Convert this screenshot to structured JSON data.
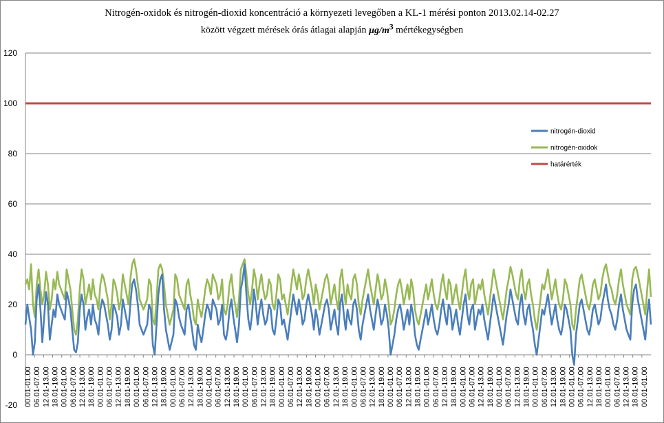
{
  "title_line1": "Nitrogén-oxidok és nitrogén-dioxid koncentráció a környezeti levegőben  a KL-1 mérési ponton 2013.02.14-02.27",
  "title_line2_a": "között végzett mérések órás átlagai alapján ",
  "title_line2_unit": "µg/m",
  "title_line2_sup": "3",
  "title_line2_b": " mértékegységben",
  "chart_data": {
    "type": "line",
    "ylim": [
      -20,
      120
    ],
    "yticks": [
      -20,
      0,
      20,
      40,
      60,
      80,
      100,
      120
    ],
    "grid": true,
    "legend_position": "right",
    "xticks_pattern": [
      "00.01-01.00",
      "06.01-07.00",
      "12.01-13.00",
      "18.01-19.00"
    ],
    "xtick_count": 69,
    "points_per_tick": 6,
    "series": [
      {
        "name": "nitrogén-dioxid",
        "color": "#4a7ebb",
        "values": [
          12,
          20,
          15,
          10,
          0,
          5,
          22,
          28,
          18,
          5,
          15,
          25,
          20,
          6,
          12,
          18,
          15,
          24,
          20,
          18,
          16,
          14,
          25,
          22,
          18,
          10,
          2,
          1,
          5,
          18,
          24,
          20,
          10,
          15,
          18,
          12,
          20,
          14,
          12,
          8,
          18,
          22,
          20,
          16,
          12,
          6,
          10,
          20,
          18,
          15,
          8,
          12,
          22,
          18,
          14,
          10,
          20,
          28,
          30,
          26,
          20,
          12,
          10,
          8,
          10,
          12,
          20,
          18,
          4,
          0,
          12,
          24,
          30,
          32,
          18,
          10,
          6,
          2,
          5,
          8,
          22,
          20,
          15,
          12,
          10,
          8,
          18,
          20,
          15,
          10,
          4,
          2,
          12,
          8,
          5,
          10,
          16,
          20,
          18,
          14,
          22,
          20,
          18,
          12,
          14,
          20,
          8,
          6,
          10,
          18,
          22,
          15,
          10,
          5,
          12,
          26,
          30,
          36,
          24,
          14,
          10,
          16,
          26,
          20,
          12,
          18,
          22,
          16,
          12,
          14,
          20,
          18,
          10,
          8,
          14,
          22,
          20,
          12,
          14,
          10,
          6,
          12,
          18,
          24,
          20,
          16,
          22,
          18,
          12,
          14,
          20,
          24,
          20,
          16,
          10,
          18,
          14,
          8,
          12,
          16,
          20,
          22,
          18,
          10,
          14,
          18,
          12,
          8,
          20,
          24,
          16,
          10,
          18,
          14,
          12,
          20,
          22,
          18,
          10,
          6,
          12,
          16,
          20,
          24,
          18,
          14,
          10,
          16,
          22,
          18,
          12,
          14,
          20,
          16,
          10,
          0,
          4,
          8,
          14,
          18,
          20,
          16,
          10,
          14,
          18,
          12,
          20,
          16,
          8,
          4,
          2,
          6,
          10,
          14,
          18,
          12,
          16,
          20,
          14,
          10,
          8,
          12,
          18,
          22,
          16,
          12,
          20,
          18,
          10,
          14,
          18,
          12,
          8,
          14,
          20,
          24,
          16,
          12,
          18,
          20,
          10,
          14,
          18,
          16,
          20,
          14,
          10,
          6,
          12,
          18,
          24,
          20,
          16,
          12,
          8,
          4,
          10,
          16,
          20,
          26,
          22,
          18,
          14,
          12,
          20,
          24,
          16,
          12,
          18,
          20,
          14,
          10,
          4,
          0,
          6,
          12,
          18,
          16,
          20,
          24,
          18,
          12,
          16,
          20,
          14,
          10,
          8,
          12,
          20,
          18,
          14,
          10,
          0,
          -4,
          8,
          14,
          20,
          22,
          18,
          14,
          10,
          8,
          12,
          18,
          20,
          16,
          12,
          14,
          20,
          24,
          28,
          22,
          18,
          16,
          12,
          10,
          14,
          20,
          24,
          18,
          14,
          10,
          8,
          6,
          20,
          26,
          28,
          22,
          18,
          14,
          10,
          6,
          16,
          22,
          12
        ]
      },
      {
        "name": "nitrogén-oxidok",
        "color": "#98b954",
        "values": [
          28,
          30,
          26,
          36,
          20,
          15,
          28,
          34,
          26,
          20,
          24,
          33,
          28,
          18,
          22,
          30,
          26,
          33,
          28,
          26,
          24,
          22,
          34,
          30,
          26,
          18,
          10,
          8,
          14,
          26,
          34,
          30,
          20,
          24,
          28,
          22,
          30,
          24,
          22,
          18,
          28,
          32,
          30,
          26,
          22,
          14,
          20,
          30,
          28,
          24,
          18,
          22,
          32,
          28,
          24,
          20,
          30,
          36,
          38,
          34,
          28,
          22,
          20,
          18,
          20,
          22,
          30,
          28,
          14,
          12,
          22,
          34,
          36,
          34,
          28,
          20,
          16,
          12,
          15,
          18,
          32,
          30,
          24,
          22,
          20,
          18,
          28,
          30,
          24,
          20,
          14,
          12,
          22,
          18,
          15,
          20,
          26,
          30,
          28,
          24,
          32,
          30,
          28,
          22,
          24,
          30,
          18,
          16,
          20,
          28,
          32,
          24,
          20,
          15,
          22,
          34,
          36,
          38,
          32,
          24,
          20,
          26,
          34,
          30,
          22,
          28,
          32,
          26,
          22,
          24,
          30,
          28,
          20,
          18,
          24,
          32,
          30,
          22,
          24,
          20,
          16,
          22,
          28,
          34,
          30,
          26,
          32,
          28,
          22,
          24,
          30,
          34,
          30,
          26,
          20,
          28,
          24,
          18,
          22,
          26,
          30,
          32,
          28,
          20,
          24,
          28,
          22,
          18,
          30,
          34,
          26,
          20,
          28,
          24,
          22,
          30,
          32,
          28,
          20,
          16,
          22,
          26,
          30,
          34,
          28,
          24,
          20,
          26,
          32,
          28,
          22,
          24,
          30,
          26,
          20,
          12,
          14,
          18,
          24,
          28,
          30,
          26,
          20,
          24,
          28,
          22,
          30,
          26,
          18,
          14,
          12,
          16,
          20,
          24,
          28,
          22,
          26,
          30,
          24,
          20,
          18,
          22,
          28,
          32,
          26,
          22,
          30,
          28,
          20,
          24,
          28,
          22,
          18,
          24,
          30,
          34,
          26,
          22,
          28,
          30,
          20,
          24,
          28,
          26,
          30,
          24,
          20,
          16,
          22,
          28,
          34,
          30,
          26,
          22,
          18,
          14,
          20,
          26,
          30,
          35,
          32,
          28,
          24,
          22,
          30,
          34,
          26,
          22,
          28,
          30,
          24,
          20,
          14,
          10,
          16,
          22,
          28,
          26,
          30,
          34,
          28,
          22,
          26,
          30,
          24,
          20,
          18,
          22,
          30,
          28,
          24,
          20,
          12,
          10,
          18,
          24,
          30,
          32,
          28,
          24,
          20,
          18,
          22,
          28,
          30,
          26,
          22,
          24,
          30,
          34,
          36,
          32,
          28,
          26,
          22,
          20,
          24,
          30,
          34,
          28,
          24,
          20,
          18,
          16,
          30,
          34,
          35,
          32,
          28,
          24,
          20,
          16,
          26,
          34,
          23
        ]
      },
      {
        "name": "határérték",
        "color": "#be4b48",
        "values": [
          100
        ]
      }
    ]
  }
}
